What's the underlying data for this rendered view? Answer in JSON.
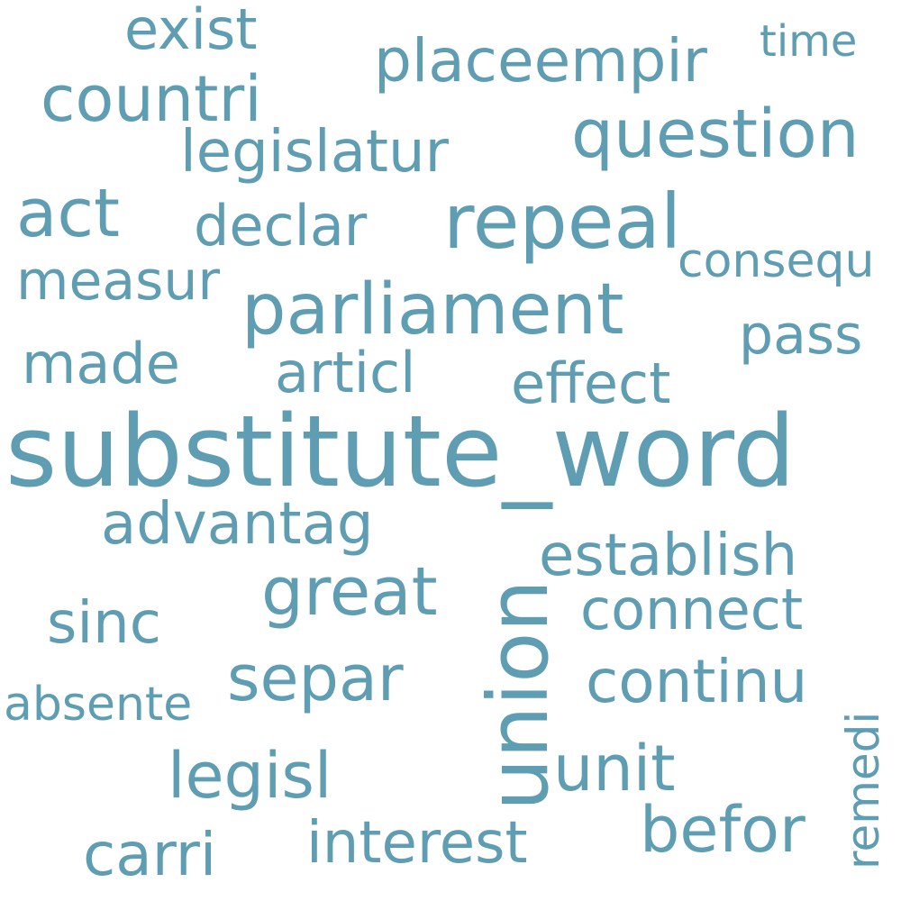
{
  "color": "#5f9db3",
  "words": {
    "substitute_word": "substitute_word",
    "union": "union",
    "repeal": "repeal",
    "parliament": "parliament",
    "act": "act",
    "question": "question",
    "countri": "countri",
    "establish": "establish",
    "placeempir": "placeempir",
    "legislatur": "legislatur",
    "great": "great",
    "separ": "separ",
    "continu": "continu",
    "unit": "unit",
    "legisl": "legisl",
    "befor": "befor",
    "interest": "interest",
    "advantag": "advantag",
    "exist": "exist",
    "declar": "declar",
    "measur": "measur",
    "effect": "effect",
    "articl": "articl",
    "connect": "connect",
    "made": "made",
    "sinc": "sinc",
    "pass": "pass",
    "carri": "carri",
    "consequ": "consequ",
    "absente": "absente",
    "remedi": "remedi",
    "time": "time"
  }
}
